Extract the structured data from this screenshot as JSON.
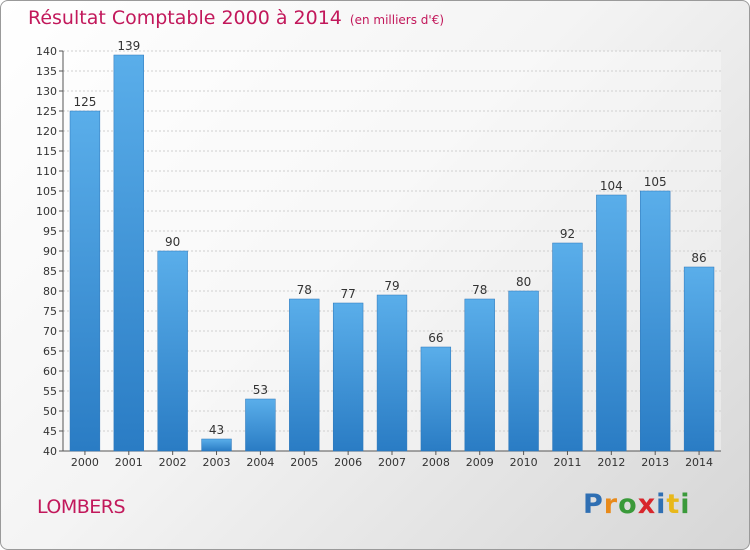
{
  "chart_data": {
    "type": "bar",
    "title": "Résultat Comptable 2000 à 2014",
    "subtitle": "(en milliers d'€)",
    "categories": [
      "2000",
      "2001",
      "2002",
      "2003",
      "2004",
      "2005",
      "2006",
      "2007",
      "2008",
      "2009",
      "2010",
      "2011",
      "2012",
      "2013",
      "2014"
    ],
    "values": [
      125,
      139,
      90,
      43,
      53,
      78,
      77,
      79,
      66,
      78,
      80,
      92,
      104,
      105,
      86
    ],
    "ylim": [
      40,
      140
    ],
    "yticks": [
      40,
      45,
      50,
      55,
      60,
      65,
      70,
      75,
      80,
      85,
      90,
      95,
      100,
      105,
      110,
      115,
      120,
      125,
      130,
      135,
      140
    ],
    "grid": true,
    "bar_color": "#3f97d9"
  },
  "commune": "LOMBERS",
  "logo": {
    "letters": [
      {
        "ch": "P",
        "color": "#2f6fb3"
      },
      {
        "ch": "r",
        "color": "#e88a1a"
      },
      {
        "ch": "o",
        "color": "#3a9a3a"
      },
      {
        "ch": "x",
        "color": "#d8262c"
      },
      {
        "ch": "i",
        "color": "#2f6fb3"
      },
      {
        "ch": "t",
        "color": "#e8b81a"
      },
      {
        "ch": "i",
        "color": "#3a9a3a"
      }
    ]
  }
}
